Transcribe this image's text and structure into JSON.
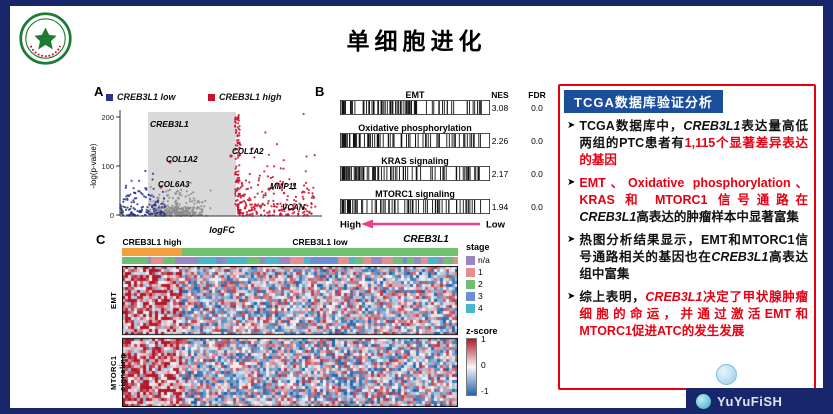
{
  "page": {
    "title": "单细胞进化",
    "watermark": "YuYuFiSH",
    "colors": {
      "frame": "#18276b",
      "accent_red": "#e60012",
      "header_blue": "#1b4e9b",
      "arrow_pink": "#ee3e8c"
    }
  },
  "panelA": {
    "label": "A",
    "legend": [
      {
        "label": "CREB3L1 low",
        "color": "#27348b"
      },
      {
        "label": "CREB3L1 high",
        "color": "#c8102e"
      }
    ],
    "colors": {
      "low": "#27348b",
      "high": "#c8102e",
      "ns": "#8c8c8c"
    },
    "ylabel": "-log(p-value)",
    "xlabel": "logFC",
    "yticks": [
      "200",
      "100",
      "0"
    ],
    "genes": [
      "CREB3L1",
      "COL1A2",
      "COL1A2",
      "COL6A3",
      "MMP11",
      "VCAN"
    ]
  },
  "panelB": {
    "label": "B",
    "header": {
      "nes": "NES",
      "fdr": "FDR"
    },
    "rows": [
      {
        "name": "EMT",
        "nes": "3.08",
        "fdr": "0.0"
      },
      {
        "name": "Oxidative phosphorylation",
        "nes": "2.26",
        "fdr": "0.0"
      },
      {
        "name": "KRAS signaling",
        "nes": "2.17",
        "fdr": "0.0"
      },
      {
        "name": "MTORC1 signaling",
        "nes": "1.94",
        "fdr": "0.0"
      }
    ],
    "axis": {
      "high": "High",
      "low": "Low",
      "gene": "CREB3L1"
    }
  },
  "panelC": {
    "label": "C",
    "col_groups": [
      {
        "label": "CREB3L1 high",
        "color": "#f0a03c"
      },
      {
        "label": "CREB3L1 low",
        "color": "#72c06e"
      }
    ],
    "row_labels": [
      "EMT",
      "MTORC1 signaling"
    ],
    "stage_legend": {
      "title": "stage",
      "items": [
        {
          "label": "n/a",
          "color": "#9a86c4"
        },
        {
          "label": "1",
          "color": "#e48f8f"
        },
        {
          "label": "2",
          "color": "#6fbf73"
        },
        {
          "label": "3",
          "color": "#6a8fd8"
        },
        {
          "label": "4",
          "color": "#46b8c8"
        }
      ]
    },
    "zscore_legend": {
      "title": "z-score",
      "high_color": "#b2182b",
      "low_color": "#2166ac",
      "ticks": [
        "1",
        "0",
        "-1"
      ]
    }
  },
  "tcga_box": {
    "header": "TCGA数据库验证分析",
    "marker": "➤",
    "bullets": [
      [
        {
          "t": "TCGA数据库中，"
        },
        {
          "t": "CREB3L1",
          "italic": true
        },
        {
          "t": "表达量高低两组的PTC患者有"
        },
        {
          "t": "1,115个显著差异表达的基因",
          "red": true
        }
      ],
      [
        {
          "t": "EMT、Oxidative phosphorylation、KRAS 和 MTORC1 信号通路在",
          "red": true
        },
        {
          "t": "CREB3L1",
          "italic": true
        },
        {
          "t": "高表达的肿瘤样本中显著富集"
        }
      ],
      [
        {
          "t": "热图分析结果显示，EMT和MTORC1信号通路相关的基因也在"
        },
        {
          "t": "CREB3L1",
          "italic": true
        },
        {
          "t": "高表达组中富集"
        }
      ],
      [
        {
          "t": "综上表明，"
        },
        {
          "t": "CREB3L1",
          "italic": true,
          "red": true
        },
        {
          "t": "决定了甲状腺肿瘤细胞的命运，并通过激活EMT和MTORC1促进ATC的发生发展",
          "red": true
        }
      ]
    ]
  }
}
